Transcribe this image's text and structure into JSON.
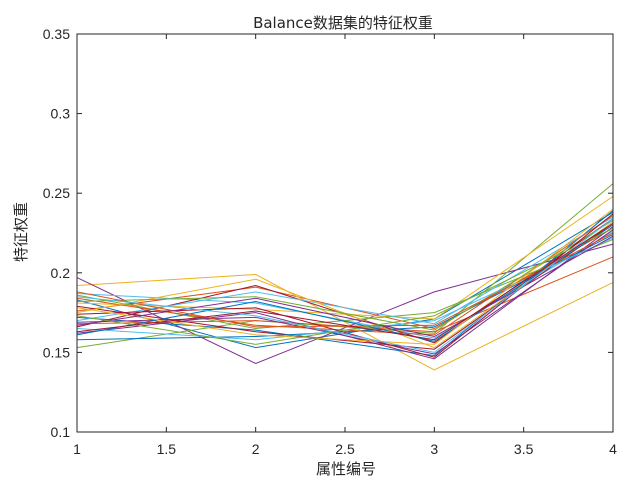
{
  "chart_data": {
    "type": "line",
    "title": "Balance数据集的特征权重",
    "xlabel": "属性编号",
    "ylabel": "特征权重",
    "x": [
      1,
      2,
      3,
      4
    ],
    "xlim": [
      1,
      4
    ],
    "ylim": [
      0.1,
      0.35
    ],
    "xticks": [
      1,
      1.5,
      2,
      2.5,
      3,
      3.5,
      4
    ],
    "xtick_labels": [
      "1",
      "1.5",
      "2",
      "2.5",
      "3",
      "3.5",
      "4"
    ],
    "yticks": [
      0.1,
      0.15,
      0.2,
      0.25,
      0.3,
      0.35
    ],
    "ytick_labels": [
      "0.1",
      "0.15",
      "0.2",
      "0.25",
      "0.3",
      "0.35"
    ],
    "grid": false,
    "legend": "none",
    "series": [
      {
        "color": "#0072BD",
        "values": [
          0.183,
          0.153,
          0.171,
          0.238
        ]
      },
      {
        "color": "#D95319",
        "values": [
          0.176,
          0.191,
          0.165,
          0.228
        ]
      },
      {
        "color": "#EDB120",
        "values": [
          0.192,
          0.199,
          0.139,
          0.194
        ]
      },
      {
        "color": "#7E2F8E",
        "values": [
          0.197,
          0.143,
          0.188,
          0.218
        ]
      },
      {
        "color": "#77AC30",
        "values": [
          0.153,
          0.17,
          0.162,
          0.256
        ]
      },
      {
        "color": "#4DBEEE",
        "values": [
          0.187,
          0.181,
          0.159,
          0.226
        ]
      },
      {
        "color": "#A2142F",
        "values": [
          0.166,
          0.192,
          0.156,
          0.234
        ]
      },
      {
        "color": "#0072BD",
        "values": [
          0.172,
          0.164,
          0.148,
          0.239
        ]
      },
      {
        "color": "#D95319",
        "values": [
          0.168,
          0.17,
          0.163,
          0.21
        ]
      },
      {
        "color": "#EDB120",
        "values": [
          0.181,
          0.177,
          0.171,
          0.248
        ]
      },
      {
        "color": "#7E2F8E",
        "values": [
          0.162,
          0.175,
          0.146,
          0.229
        ]
      },
      {
        "color": "#77AC30",
        "values": [
          0.186,
          0.165,
          0.175,
          0.221
        ]
      },
      {
        "color": "#4DBEEE",
        "values": [
          0.17,
          0.188,
          0.168,
          0.235
        ]
      },
      {
        "color": "#A2142F",
        "values": [
          0.179,
          0.163,
          0.152,
          0.231
        ]
      },
      {
        "color": "#0072BD",
        "values": [
          0.158,
          0.16,
          0.166,
          0.224
        ]
      },
      {
        "color": "#D95319",
        "values": [
          0.184,
          0.167,
          0.161,
          0.236
        ]
      },
      {
        "color": "#EDB120",
        "values": [
          0.175,
          0.196,
          0.153,
          0.232
        ]
      },
      {
        "color": "#7E2F8E",
        "values": [
          0.169,
          0.172,
          0.149,
          0.227
        ]
      },
      {
        "color": "#77AC30",
        "values": [
          0.182,
          0.185,
          0.164,
          0.233
        ]
      },
      {
        "color": "#4DBEEE",
        "values": [
          0.165,
          0.158,
          0.17,
          0.222
        ]
      },
      {
        "color": "#A2142F",
        "values": [
          0.174,
          0.178,
          0.147,
          0.237
        ]
      },
      {
        "color": "#0072BD",
        "values": [
          0.161,
          0.182,
          0.157,
          0.23
        ]
      },
      {
        "color": "#D95319",
        "values": [
          0.188,
          0.166,
          0.167,
          0.225
        ]
      },
      {
        "color": "#EDB120",
        "values": [
          0.178,
          0.161,
          0.155,
          0.24
        ]
      },
      {
        "color": "#7E2F8E",
        "values": [
          0.167,
          0.184,
          0.16,
          0.223
        ]
      },
      {
        "color": "#77AC30",
        "values": [
          0.173,
          0.155,
          0.173,
          0.228
        ]
      },
      {
        "color": "#4DBEEE",
        "values": [
          0.185,
          0.173,
          0.15,
          0.234
        ]
      },
      {
        "color": "#A2142F",
        "values": [
          0.163,
          0.176,
          0.158,
          0.231
        ]
      }
    ]
  }
}
